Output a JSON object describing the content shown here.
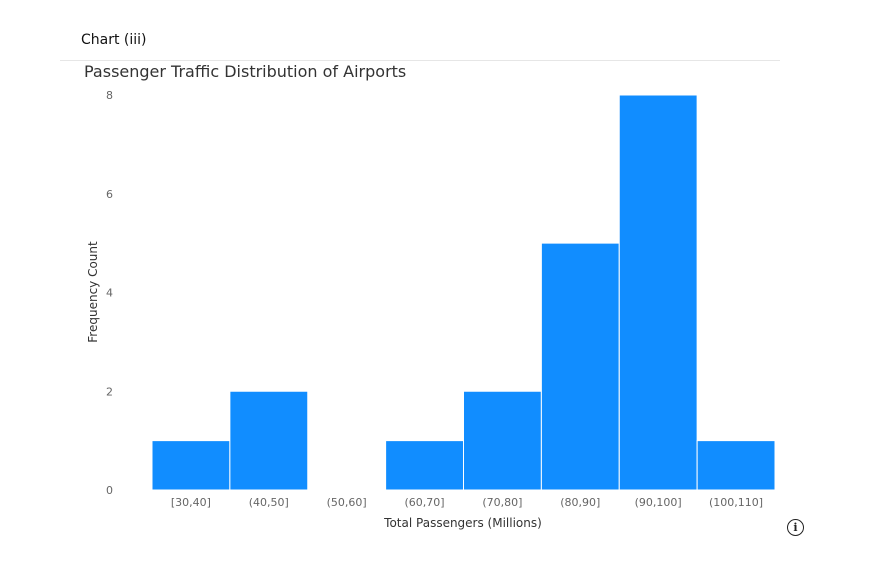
{
  "caption": "Chart (iii)",
  "info_icon": "info-circle-icon",
  "chart_data": {
    "type": "bar",
    "title": "Passenger Traffic Distribution of Airports",
    "xlabel": "Total Passengers (Millions)",
    "ylabel": "Frequency Count",
    "categories": [
      "[30,40]",
      "(40,50]",
      "(50,60]",
      "(60,70]",
      "(70,80]",
      "(80,90]",
      "(90,100]",
      "(100,110]"
    ],
    "values": [
      1,
      2,
      0,
      1,
      2,
      5,
      8,
      1
    ],
    "ylim": [
      0,
      8
    ],
    "yticks": [
      0,
      2,
      4,
      6,
      8
    ],
    "grid": false,
    "bar_color": "#118DFF"
  }
}
